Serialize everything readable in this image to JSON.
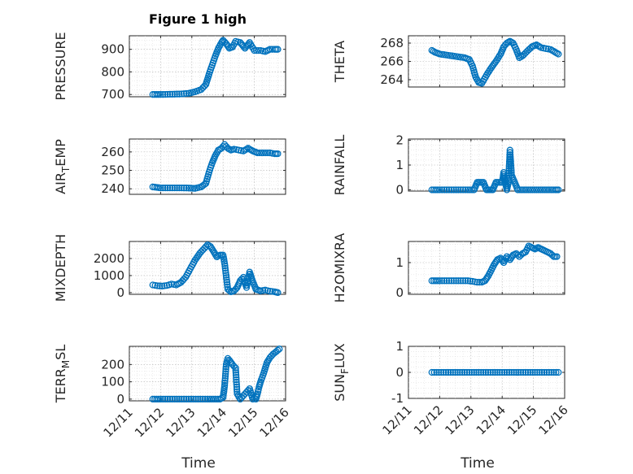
{
  "chart_data": [
    {
      "type": "scatter",
      "title": "Figure 1 high",
      "ylabel": "PRESSURE",
      "ylim": [
        690,
        960
      ],
      "yticks": [
        700,
        800,
        900
      ],
      "xlim": [
        0,
        5
      ],
      "xticks": [
        "12/11",
        "12/12",
        "12/13",
        "12/14",
        "12/15",
        "12/16"
      ],
      "show_xtick_labels": false,
      "series": [
        {
          "x": [
            0.75,
            1.0,
            1.3,
            1.6,
            1.9,
            2.1,
            2.3,
            2.45,
            2.55,
            2.65,
            2.75,
            2.85,
            2.95,
            3.0,
            3.1,
            3.2,
            3.3,
            3.4,
            3.55,
            3.7,
            3.85,
            4.0,
            4.2,
            4.35,
            4.5,
            4.65,
            4.75
          ],
          "y": [
            700,
            700,
            701,
            702,
            705,
            712,
            722,
            745,
            790,
            830,
            870,
            905,
            930,
            940,
            925,
            905,
            910,
            935,
            930,
            905,
            930,
            895,
            895,
            890,
            900,
            900,
            900
          ]
        }
      ]
    },
    {
      "type": "scatter",
      "ylabel": "THETA",
      "ylim": [
        263.2,
        268.8
      ],
      "yticks": [
        264,
        266,
        268
      ],
      "xlim": [
        0,
        5
      ],
      "xticks": [
        "12/11",
        "12/12",
        "12/13",
        "12/14",
        "12/15",
        "12/16"
      ],
      "show_xtick_labels": false,
      "series": [
        {
          "x": [
            0.75,
            0.85,
            1.0,
            1.2,
            1.4,
            1.6,
            1.8,
            1.95,
            2.05,
            2.15,
            2.25,
            2.35,
            2.5,
            2.65,
            2.8,
            2.95,
            3.05,
            3.15,
            3.25,
            3.35,
            3.45,
            3.55,
            3.65,
            3.8,
            3.95,
            4.1,
            4.25,
            4.4,
            4.55,
            4.7,
            4.8
          ],
          "y": [
            267.2,
            267.0,
            266.8,
            266.7,
            266.6,
            266.5,
            266.4,
            266.2,
            265.5,
            264.3,
            263.7,
            263.6,
            264.5,
            265.3,
            266.0,
            266.8,
            267.6,
            268.0,
            268.2,
            268.0,
            267.3,
            266.4,
            266.6,
            267.1,
            267.6,
            267.8,
            267.5,
            267.4,
            267.3,
            267.0,
            266.8
          ]
        }
      ]
    },
    {
      "type": "scatter",
      "ylabel": "AIR_TEMP",
      "ylim": [
        237,
        267
      ],
      "yticks": [
        240,
        250,
        260
      ],
      "xlim": [
        0,
        5
      ],
      "xticks": [
        "12/11",
        "12/12",
        "12/13",
        "12/14",
        "12/15",
        "12/16"
      ],
      "show_xtick_labels": false,
      "series": [
        {
          "x": [
            0.75,
            1.0,
            1.3,
            1.6,
            1.9,
            2.1,
            2.3,
            2.45,
            2.55,
            2.65,
            2.75,
            2.85,
            2.95,
            3.05,
            3.15,
            3.25,
            3.35,
            3.5,
            3.65,
            3.8,
            3.95,
            4.1,
            4.3,
            4.5,
            4.65,
            4.75
          ],
          "y": [
            241,
            240.5,
            240.5,
            240.5,
            240.4,
            240.2,
            241,
            243,
            249,
            254,
            258,
            261,
            262,
            264,
            262,
            261,
            261.5,
            261,
            260.5,
            262,
            260.5,
            259.5,
            259.5,
            259.5,
            259,
            259
          ]
        }
      ]
    },
    {
      "type": "scatter",
      "ylabel": "RAINFALL",
      "ylim": [
        -0.05,
        2.05
      ],
      "yticks": [
        0,
        1,
        2
      ],
      "xlim": [
        0,
        5
      ],
      "xticks": [
        "12/11",
        "12/12",
        "12/13",
        "12/14",
        "12/15",
        "12/16"
      ],
      "show_xtick_labels": false,
      "series": [
        {
          "x": [
            0.75,
            1.0,
            1.3,
            1.6,
            1.9,
            2.1,
            2.2,
            2.3,
            2.4,
            2.5,
            2.6,
            2.7,
            2.8,
            2.9,
            3.0,
            3.05,
            3.1,
            3.15,
            3.2,
            3.25,
            3.3,
            3.4,
            3.5,
            3.7,
            3.9,
            4.1,
            4.3,
            4.5,
            4.7,
            4.8
          ],
          "y": [
            0,
            0,
            0,
            0,
            0,
            0,
            0.3,
            0.3,
            0.3,
            0,
            0,
            0,
            0.3,
            0.3,
            0.3,
            0.7,
            0.3,
            0,
            0.3,
            1.6,
            0.6,
            0.3,
            0,
            0,
            0,
            0,
            0,
            0,
            0,
            0
          ]
        }
      ]
    },
    {
      "type": "scatter",
      "ylabel": "MIXDEPTH",
      "ylim": [
        -100,
        3000
      ],
      "yticks": [
        0,
        1000,
        2000
      ],
      "xlim": [
        0,
        5
      ],
      "xticks": [
        "12/11",
        "12/12",
        "12/13",
        "12/14",
        "12/15",
        "12/16"
      ],
      "show_xtick_labels": false,
      "series": [
        {
          "x": [
            0.75,
            0.9,
            1.05,
            1.2,
            1.35,
            1.5,
            1.65,
            1.8,
            1.95,
            2.1,
            2.25,
            2.4,
            2.5,
            2.6,
            2.7,
            2.8,
            2.9,
            3.0,
            3.05,
            3.15,
            3.25,
            3.35,
            3.45,
            3.55,
            3.65,
            3.75,
            3.85,
            3.95,
            4.05,
            4.2,
            4.35,
            4.5,
            4.65,
            4.75
          ],
          "y": [
            450,
            400,
            380,
            420,
            500,
            450,
            600,
            900,
            1400,
            1900,
            2300,
            2600,
            2800,
            2700,
            2400,
            2100,
            2200,
            2200,
            1700,
            200,
            50,
            100,
            300,
            700,
            900,
            300,
            1200,
            650,
            200,
            100,
            150,
            80,
            50,
            0
          ]
        }
      ]
    },
    {
      "type": "scatter",
      "ylabel": "H2OMIXRA",
      "ylim": [
        -0.05,
        1.7
      ],
      "yticks": [
        0,
        1
      ],
      "xlim": [
        0,
        5
      ],
      "xticks": [
        "12/11",
        "12/12",
        "12/13",
        "12/14",
        "12/15",
        "12/16"
      ],
      "show_xtick_labels": false,
      "series": [
        {
          "x": [
            0.75,
            1.0,
            1.3,
            1.6,
            1.9,
            2.05,
            2.2,
            2.35,
            2.45,
            2.55,
            2.65,
            2.75,
            2.85,
            2.95,
            3.05,
            3.15,
            3.25,
            3.35,
            3.45,
            3.55,
            3.65,
            3.75,
            3.85,
            3.95,
            4.05,
            4.15,
            4.25,
            4.35,
            4.45,
            4.55,
            4.65,
            4.75
          ],
          "y": [
            0.4,
            0.4,
            0.4,
            0.4,
            0.4,
            0.38,
            0.35,
            0.35,
            0.4,
            0.55,
            0.75,
            0.95,
            1.1,
            1.15,
            1.0,
            1.2,
            1.1,
            1.25,
            1.3,
            1.2,
            1.3,
            1.35,
            1.55,
            1.5,
            1.45,
            1.5,
            1.45,
            1.4,
            1.35,
            1.3,
            1.2,
            1.2
          ]
        }
      ]
    },
    {
      "type": "scatter",
      "ylabel": "TERR_MSL",
      "ylim": [
        -10,
        305
      ],
      "yticks": [
        0,
        100,
        200
      ],
      "xlim": [
        0,
        5
      ],
      "xticks": [
        "12/11",
        "12/12",
        "12/13",
        "12/14",
        "12/15",
        "12/16"
      ],
      "show_xtick_labels": true,
      "series": [
        {
          "x": [
            0.75,
            1.0,
            1.3,
            1.6,
            1.9,
            2.2,
            2.5,
            2.7,
            2.9,
            3.0,
            3.05,
            3.1,
            3.15,
            3.2,
            3.3,
            3.4,
            3.45,
            3.55,
            3.65,
            3.75,
            3.85,
            3.95,
            4.0,
            4.05,
            4.1,
            4.15,
            4.2,
            4.3,
            4.4,
            4.5,
            4.6,
            4.7,
            4.8
          ],
          "y": [
            0,
            0,
            0,
            0,
            0,
            0,
            0,
            0,
            0,
            10,
            80,
            200,
            235,
            225,
            200,
            180,
            30,
            0,
            20,
            40,
            60,
            0,
            5,
            0,
            30,
            70,
            100,
            150,
            210,
            240,
            260,
            275,
            290
          ]
        }
      ]
    },
    {
      "type": "scatter",
      "ylabel": "SUN_FLUX",
      "ylim": [
        -1,
        1
      ],
      "yticks": [
        -1,
        0,
        1
      ],
      "xlim": [
        0,
        5
      ],
      "xticks": [
        "12/11",
        "12/12",
        "12/13",
        "12/14",
        "12/15",
        "12/16"
      ],
      "show_xtick_labels": true,
      "series": [
        {
          "x": [
            0.75,
            0.9,
            1.05,
            1.2,
            1.35,
            1.5,
            1.65,
            1.8,
            1.95,
            2.1,
            2.25,
            2.4,
            2.55,
            2.7,
            2.85,
            3.0,
            3.15,
            3.3,
            3.45,
            3.6,
            3.75,
            3.9,
            4.05,
            4.2,
            4.35,
            4.5,
            4.65,
            4.8
          ],
          "y": [
            0,
            0,
            0,
            0,
            0,
            0,
            0,
            0,
            0,
            0,
            0,
            0,
            0,
            0,
            0,
            0,
            0,
            0,
            0,
            0,
            0,
            0,
            0,
            0,
            0,
            0,
            0,
            0
          ]
        }
      ]
    }
  ],
  "xlabels": [
    "Time",
    "Time"
  ],
  "colors": {
    "marker": "#0072bd",
    "axes": "#262626"
  }
}
